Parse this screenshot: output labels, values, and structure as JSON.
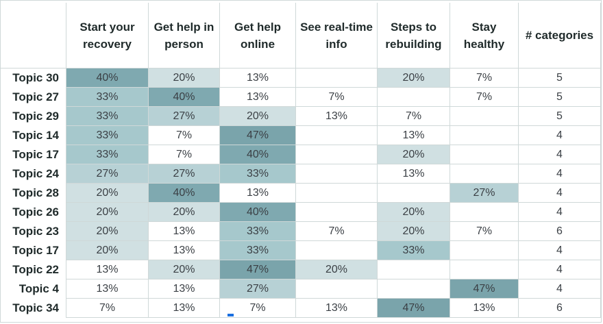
{
  "chart_data": {
    "type": "table",
    "columns": [
      "Start your recovery",
      "Get help in person",
      "Get help online",
      "See real-time info",
      "Steps to rebuilding",
      "Stay healthy",
      "# categories"
    ],
    "rows": [
      {
        "label": "Topic 30",
        "cells": [
          "40%",
          "20%",
          "13%",
          "",
          "20%",
          "7%",
          "5"
        ],
        "values": [
          40,
          20,
          13,
          null,
          20,
          7,
          5
        ]
      },
      {
        "label": "Topic 27",
        "cells": [
          "33%",
          "40%",
          "13%",
          "7%",
          "",
          "7%",
          "5"
        ],
        "values": [
          33,
          40,
          13,
          7,
          null,
          7,
          5
        ]
      },
      {
        "label": "Topic 29",
        "cells": [
          "33%",
          "27%",
          "20%",
          "13%",
          "7%",
          "",
          "5"
        ],
        "values": [
          33,
          27,
          20,
          13,
          7,
          null,
          5
        ]
      },
      {
        "label": "Topic 14",
        "cells": [
          "33%",
          "7%",
          "47%",
          "",
          "13%",
          "",
          "4"
        ],
        "values": [
          33,
          7,
          47,
          null,
          13,
          null,
          4
        ]
      },
      {
        "label": "Topic 17",
        "cells": [
          "33%",
          "7%",
          "40%",
          "",
          "20%",
          "",
          "4"
        ],
        "values": [
          33,
          7,
          40,
          null,
          20,
          null,
          4
        ]
      },
      {
        "label": "Topic 24",
        "cells": [
          "27%",
          "27%",
          "33%",
          "",
          "13%",
          "",
          "4"
        ],
        "values": [
          27,
          27,
          33,
          null,
          13,
          null,
          4
        ]
      },
      {
        "label": "Topic 28",
        "cells": [
          "20%",
          "40%",
          "13%",
          "",
          "",
          "27%",
          "4"
        ],
        "values": [
          20,
          40,
          13,
          null,
          null,
          27,
          4
        ]
      },
      {
        "label": "Topic 26",
        "cells": [
          "20%",
          "20%",
          "40%",
          "",
          "20%",
          "",
          "4"
        ],
        "values": [
          20,
          20,
          40,
          null,
          20,
          null,
          4
        ]
      },
      {
        "label": "Topic 23",
        "cells": [
          "20%",
          "13%",
          "33%",
          "7%",
          "20%",
          "7%",
          "6"
        ],
        "values": [
          20,
          13,
          33,
          7,
          20,
          7,
          6
        ]
      },
      {
        "label": "Topic 17",
        "cells": [
          "20%",
          "13%",
          "33%",
          "",
          "33%",
          "",
          "4"
        ],
        "values": [
          20,
          13,
          33,
          null,
          33,
          null,
          4
        ]
      },
      {
        "label": "Topic 22",
        "cells": [
          "13%",
          "20%",
          "47%",
          "20%",
          "",
          "",
          "4"
        ],
        "values": [
          13,
          20,
          47,
          20,
          null,
          null,
          4
        ]
      },
      {
        "label": "Topic 4",
        "cells": [
          "13%",
          "13%",
          "27%",
          "",
          "",
          "47%",
          "4"
        ],
        "values": [
          13,
          13,
          27,
          null,
          null,
          47,
          4
        ]
      },
      {
        "label": "Topic 34",
        "cells": [
          "7%",
          "13%",
          "7%",
          "13%",
          "47%",
          "13%",
          "6"
        ],
        "values": [
          7,
          13,
          7,
          13,
          47,
          13,
          6
        ]
      }
    ],
    "shading": {
      "7": "#ffffff",
      "13": "#ffffff",
      "20": "#d0e0e2",
      "27": "#b7d1d5",
      "33": "#a6c8cc",
      "40": "#7fa9b0",
      "47": "#7aa4ab"
    },
    "exceptions": [
      {
        "row": 2,
        "col": 3,
        "color": "#ffffff"
      },
      {
        "row": 12,
        "col": 1,
        "color": "#ffffff"
      }
    ],
    "grid": true
  }
}
